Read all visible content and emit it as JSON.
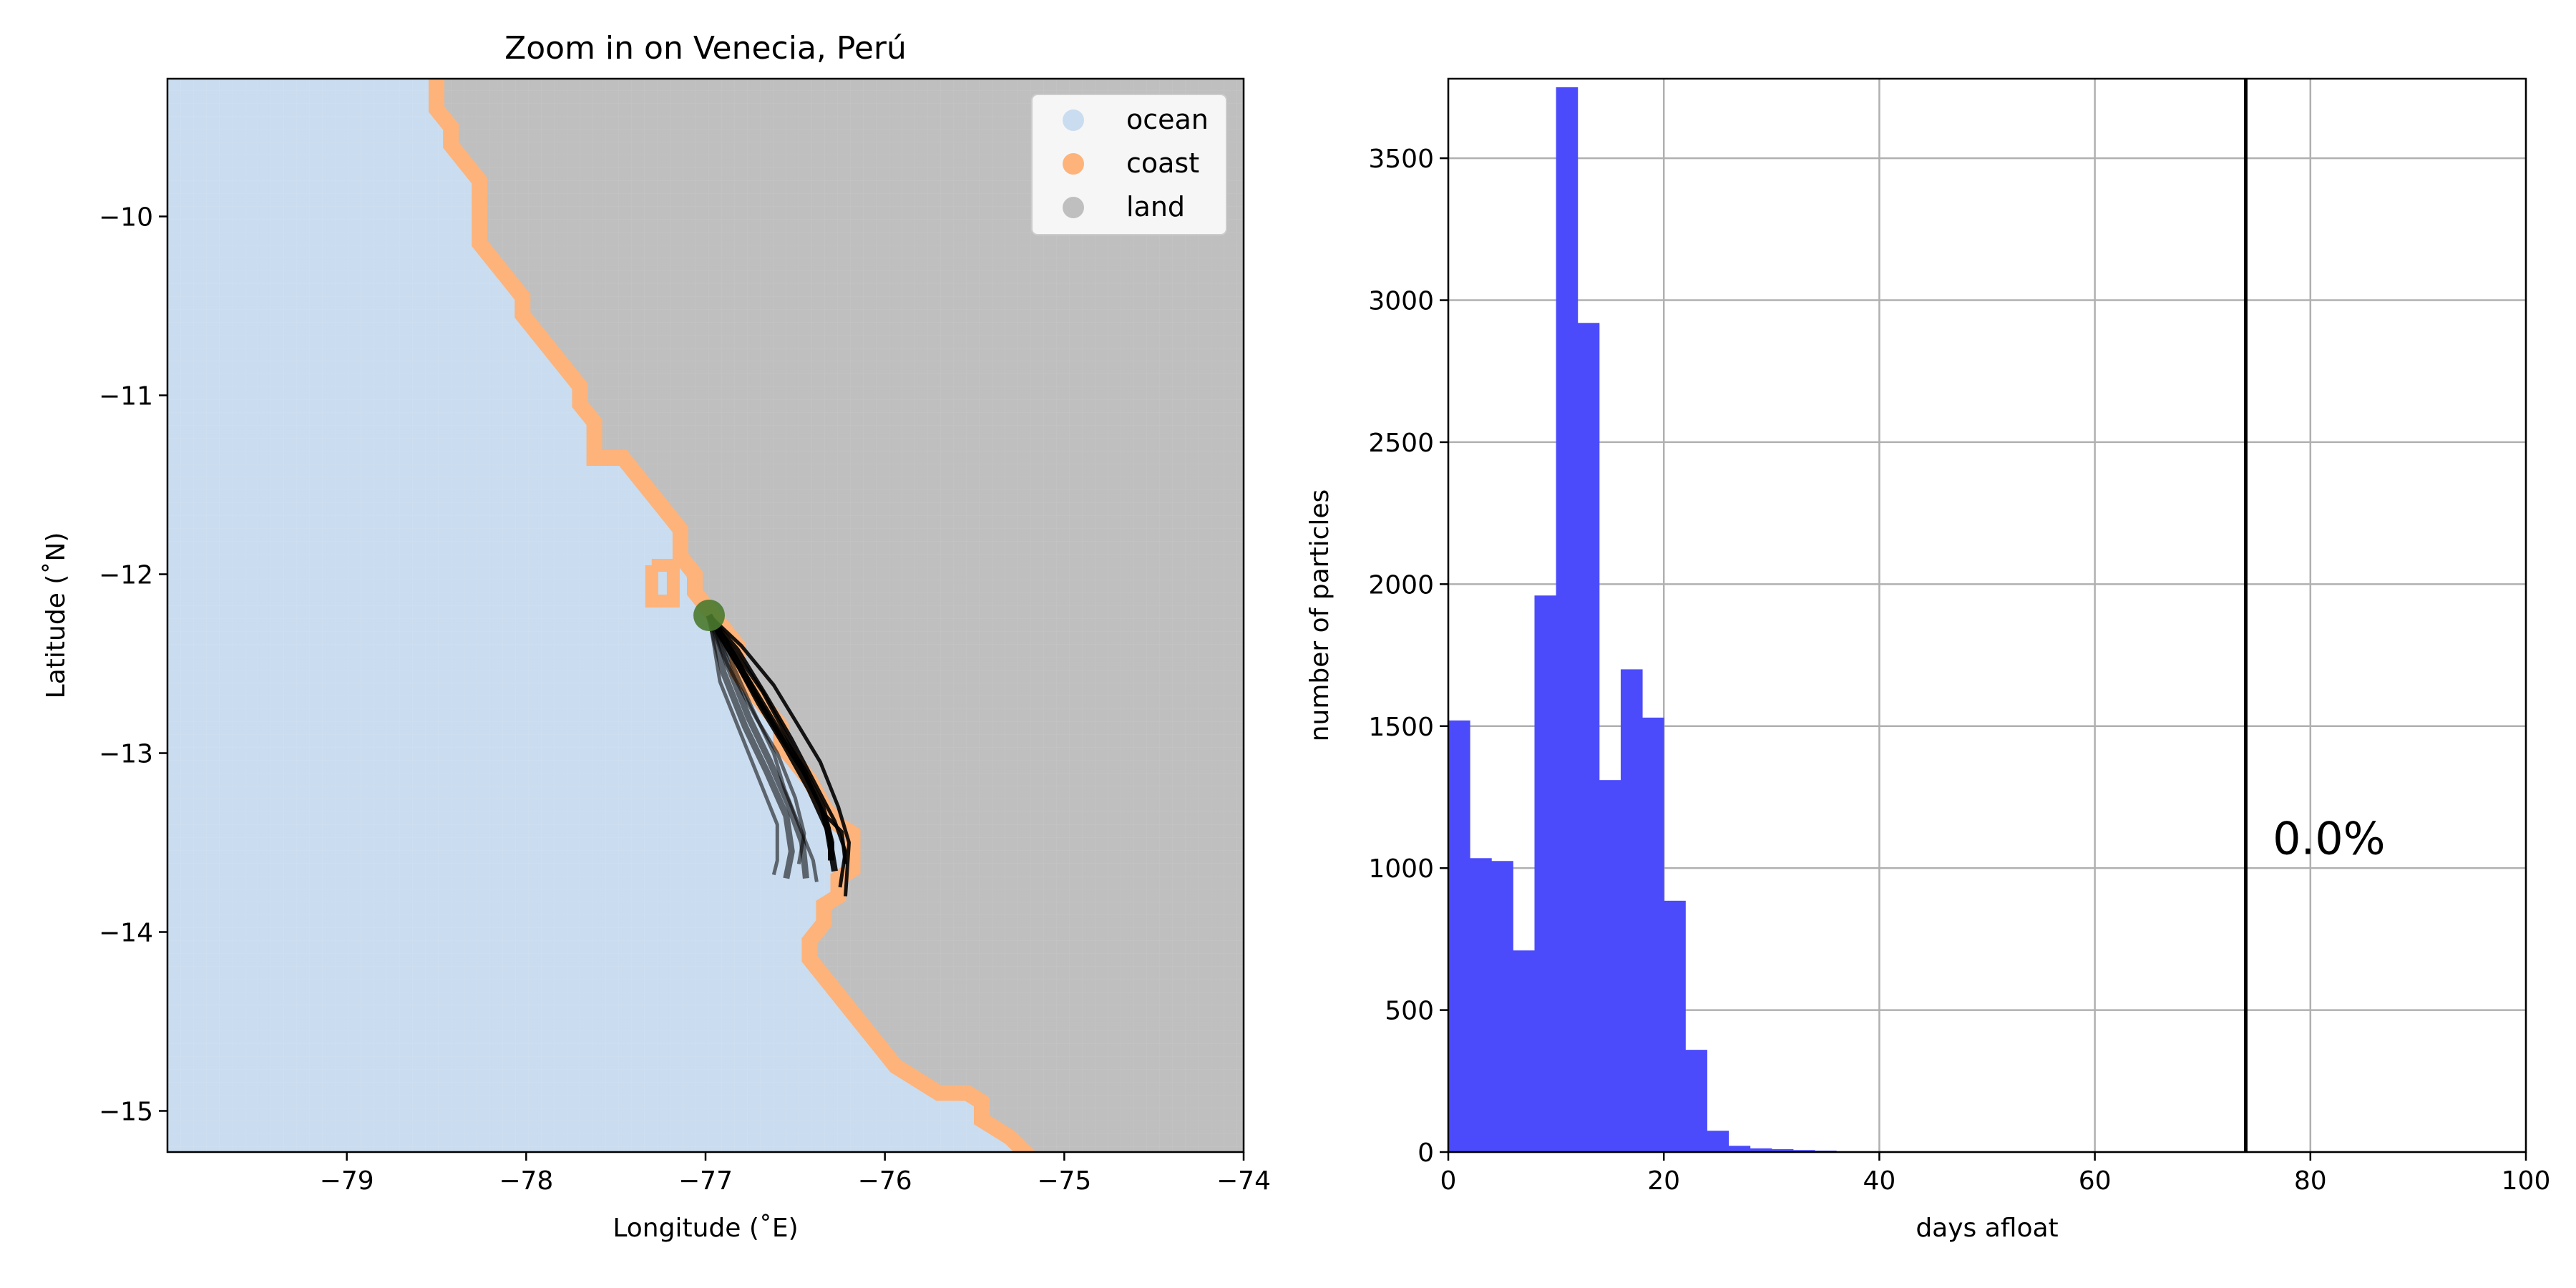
{
  "colors": {
    "ocean": "#cadcef",
    "coast": "#fdb37a",
    "land": "#bfbfbf",
    "release": "#4a7a2e",
    "trajectory": "#000000",
    "histogram": "#4b4bfb",
    "marker_line": "#000000",
    "grid": "#b0b0b0"
  },
  "chart_data": [
    {
      "type": "map",
      "title": "Zoom in on Venecia, Perú",
      "xlabel": "Longitude (˚E)",
      "ylabel": "Latitude (˚N)",
      "xlim": [
        -80,
        -74
      ],
      "ylim": [
        -15.23,
        -9.23
      ],
      "xticks": [
        -79,
        -78,
        -77,
        -76,
        -75,
        -74
      ],
      "xtick_labels": [
        "−79",
        "−78",
        "−77",
        "−76",
        "−75",
        "−74"
      ],
      "yticks": [
        -10,
        -11,
        -12,
        -13,
        -14,
        -15
      ],
      "ytick_labels": [
        "−10",
        "−11",
        "−12",
        "−13",
        "−14",
        "−15"
      ],
      "grid": false,
      "legend_position": "top-right",
      "legend": [
        {
          "label": "ocean",
          "color": "#cadcef"
        },
        {
          "label": "coast",
          "color": "#fdb37a"
        },
        {
          "label": "land",
          "color": "#bfbfbf"
        }
      ],
      "coastline": [
        [
          -78.5,
          -9.23
        ],
        [
          -78.5,
          -9.4
        ],
        [
          -78.42,
          -9.5
        ],
        [
          -78.42,
          -9.6
        ],
        [
          -78.34,
          -9.7
        ],
        [
          -78.26,
          -9.8
        ],
        [
          -78.26,
          -10.0
        ],
        [
          -78.26,
          -10.15
        ],
        [
          -78.18,
          -10.25
        ],
        [
          -78.1,
          -10.35
        ],
        [
          -78.02,
          -10.45
        ],
        [
          -78.02,
          -10.55
        ],
        [
          -77.94,
          -10.65
        ],
        [
          -77.86,
          -10.75
        ],
        [
          -77.78,
          -10.85
        ],
        [
          -77.7,
          -10.95
        ],
        [
          -77.7,
          -11.05
        ],
        [
          -77.62,
          -11.15
        ],
        [
          -77.62,
          -11.35
        ],
        [
          -77.46,
          -11.35
        ],
        [
          -77.38,
          -11.45
        ],
        [
          -77.3,
          -11.55
        ],
        [
          -77.22,
          -11.65
        ],
        [
          -77.14,
          -11.75
        ],
        [
          -77.14,
          -11.9
        ],
        [
          -77.06,
          -12.0
        ],
        [
          -77.06,
          -12.1
        ],
        [
          -76.98,
          -12.2
        ],
        [
          -76.9,
          -12.3
        ],
        [
          -76.82,
          -12.4
        ],
        [
          -76.82,
          -12.55
        ],
        [
          -76.74,
          -12.65
        ],
        [
          -76.66,
          -12.75
        ],
        [
          -76.58,
          -12.85
        ],
        [
          -76.58,
          -12.95
        ],
        [
          -76.5,
          -13.05
        ],
        [
          -76.42,
          -13.15
        ],
        [
          -76.34,
          -13.3
        ],
        [
          -76.26,
          -13.4
        ],
        [
          -76.18,
          -13.45
        ],
        [
          -76.18,
          -13.65
        ],
        [
          -76.26,
          -13.7
        ],
        [
          -76.26,
          -13.8
        ],
        [
          -76.34,
          -13.85
        ],
        [
          -76.34,
          -13.95
        ],
        [
          -76.42,
          -14.05
        ],
        [
          -76.42,
          -14.15
        ],
        [
          -76.34,
          -14.25
        ],
        [
          -76.26,
          -14.35
        ],
        [
          -76.18,
          -14.45
        ],
        [
          -76.1,
          -14.55
        ],
        [
          -76.02,
          -14.65
        ],
        [
          -75.94,
          -14.75
        ],
        [
          -75.86,
          -14.8
        ],
        [
          -75.78,
          -14.85
        ],
        [
          -75.7,
          -14.9
        ],
        [
          -75.54,
          -14.9
        ],
        [
          -75.46,
          -14.95
        ],
        [
          -75.46,
          -15.05
        ],
        [
          -75.38,
          -15.1
        ],
        [
          -75.3,
          -15.15
        ],
        [
          -75.22,
          -15.23
        ]
      ],
      "coast_bump": [
        [
          -77.3,
          -11.95
        ],
        [
          -77.18,
          -11.95
        ],
        [
          -77.18,
          -12.15
        ],
        [
          -77.3,
          -12.15
        ]
      ],
      "release_point": {
        "lon": -76.98,
        "lat": -12.23
      },
      "trajectories": [
        [
          [
            -76.98,
            -12.23
          ],
          [
            -76.85,
            -12.45
          ],
          [
            -76.7,
            -12.7
          ],
          [
            -76.58,
            -12.9
          ],
          [
            -76.45,
            -13.1
          ],
          [
            -76.35,
            -13.3
          ],
          [
            -76.3,
            -13.5
          ],
          [
            -76.3,
            -13.6
          ]
        ],
        [
          [
            -76.98,
            -12.23
          ],
          [
            -76.88,
            -12.5
          ],
          [
            -76.72,
            -12.8
          ],
          [
            -76.6,
            -13.0
          ],
          [
            -76.5,
            -13.25
          ],
          [
            -76.45,
            -13.45
          ],
          [
            -76.48,
            -13.62
          ]
        ],
        [
          [
            -76.98,
            -12.23
          ],
          [
            -76.82,
            -12.42
          ],
          [
            -76.66,
            -12.68
          ],
          [
            -76.52,
            -12.92
          ],
          [
            -76.4,
            -13.15
          ],
          [
            -76.28,
            -13.38
          ],
          [
            -76.22,
            -13.55
          ],
          [
            -76.25,
            -13.75
          ]
        ],
        [
          [
            -76.98,
            -12.23
          ],
          [
            -76.9,
            -12.55
          ],
          [
            -76.78,
            -12.85
          ],
          [
            -76.66,
            -13.1
          ],
          [
            -76.55,
            -13.35
          ],
          [
            -76.52,
            -13.55
          ],
          [
            -76.55,
            -13.7
          ]
        ],
        [
          [
            -76.98,
            -12.23
          ],
          [
            -76.8,
            -12.4
          ],
          [
            -76.62,
            -12.62
          ],
          [
            -76.48,
            -12.85
          ],
          [
            -76.36,
            -13.05
          ],
          [
            -76.26,
            -13.3
          ],
          [
            -76.2,
            -13.5
          ],
          [
            -76.22,
            -13.8
          ]
        ],
        [
          [
            -76.98,
            -12.23
          ],
          [
            -76.86,
            -12.48
          ],
          [
            -76.74,
            -12.75
          ],
          [
            -76.62,
            -13.0
          ],
          [
            -76.56,
            -13.2
          ],
          [
            -76.48,
            -13.4
          ],
          [
            -76.4,
            -13.6
          ],
          [
            -76.38,
            -13.72
          ]
        ],
        [
          [
            -76.98,
            -12.23
          ],
          [
            -76.84,
            -12.46
          ],
          [
            -76.7,
            -12.72
          ],
          [
            -76.56,
            -12.95
          ],
          [
            -76.42,
            -13.2
          ],
          [
            -76.32,
            -13.42
          ],
          [
            -76.28,
            -13.66
          ]
        ],
        [
          [
            -76.98,
            -12.23
          ],
          [
            -76.92,
            -12.6
          ],
          [
            -76.8,
            -12.9
          ],
          [
            -76.7,
            -13.15
          ],
          [
            -76.6,
            -13.4
          ],
          [
            -76.6,
            -13.6
          ],
          [
            -76.62,
            -13.68
          ]
        ],
        [
          [
            -76.98,
            -12.23
          ],
          [
            -76.83,
            -12.44
          ],
          [
            -76.68,
            -12.66
          ],
          [
            -76.55,
            -12.9
          ],
          [
            -76.44,
            -13.12
          ],
          [
            -76.34,
            -13.34
          ],
          [
            -76.24,
            -13.44
          ],
          [
            -76.22,
            -13.62
          ]
        ],
        [
          [
            -76.98,
            -12.23
          ],
          [
            -76.87,
            -12.52
          ],
          [
            -76.76,
            -12.8
          ],
          [
            -76.64,
            -13.05
          ],
          [
            -76.54,
            -13.28
          ],
          [
            -76.46,
            -13.5
          ],
          [
            -76.44,
            -13.7
          ]
        ]
      ]
    },
    {
      "type": "bar",
      "title": "",
      "xlabel": "days afloat",
      "ylabel": "number of particles",
      "xlim": [
        0,
        100
      ],
      "ylim": [
        0,
        3780
      ],
      "xticks": [
        0,
        20,
        40,
        60,
        80,
        100
      ],
      "xtick_labels": [
        "0",
        "20",
        "40",
        "60",
        "80",
        "100"
      ],
      "yticks": [
        0,
        500,
        1000,
        1500,
        2000,
        2500,
        3000,
        3500
      ],
      "ytick_labels": [
        "0",
        "500",
        "1000",
        "1500",
        "2000",
        "2500",
        "3000",
        "3500"
      ],
      "grid": true,
      "bin_width": 2,
      "bin_start": 0,
      "values": [
        1520,
        1035,
        1025,
        710,
        1960,
        3750,
        2920,
        1310,
        1700,
        1530,
        885,
        360,
        75,
        22,
        13,
        10,
        7,
        5,
        2,
        1,
        1,
        0,
        0,
        0,
        0,
        0,
        0,
        0,
        0,
        0,
        0,
        0,
        0,
        0,
        0,
        0,
        0,
        0,
        0,
        0,
        0,
        0,
        0,
        0,
        0,
        0,
        0,
        0,
        0,
        0
      ],
      "vline_x": 74,
      "annotation": "0.0%",
      "annotation_position": {
        "x": 76.5,
        "y": 1050
      }
    }
  ]
}
